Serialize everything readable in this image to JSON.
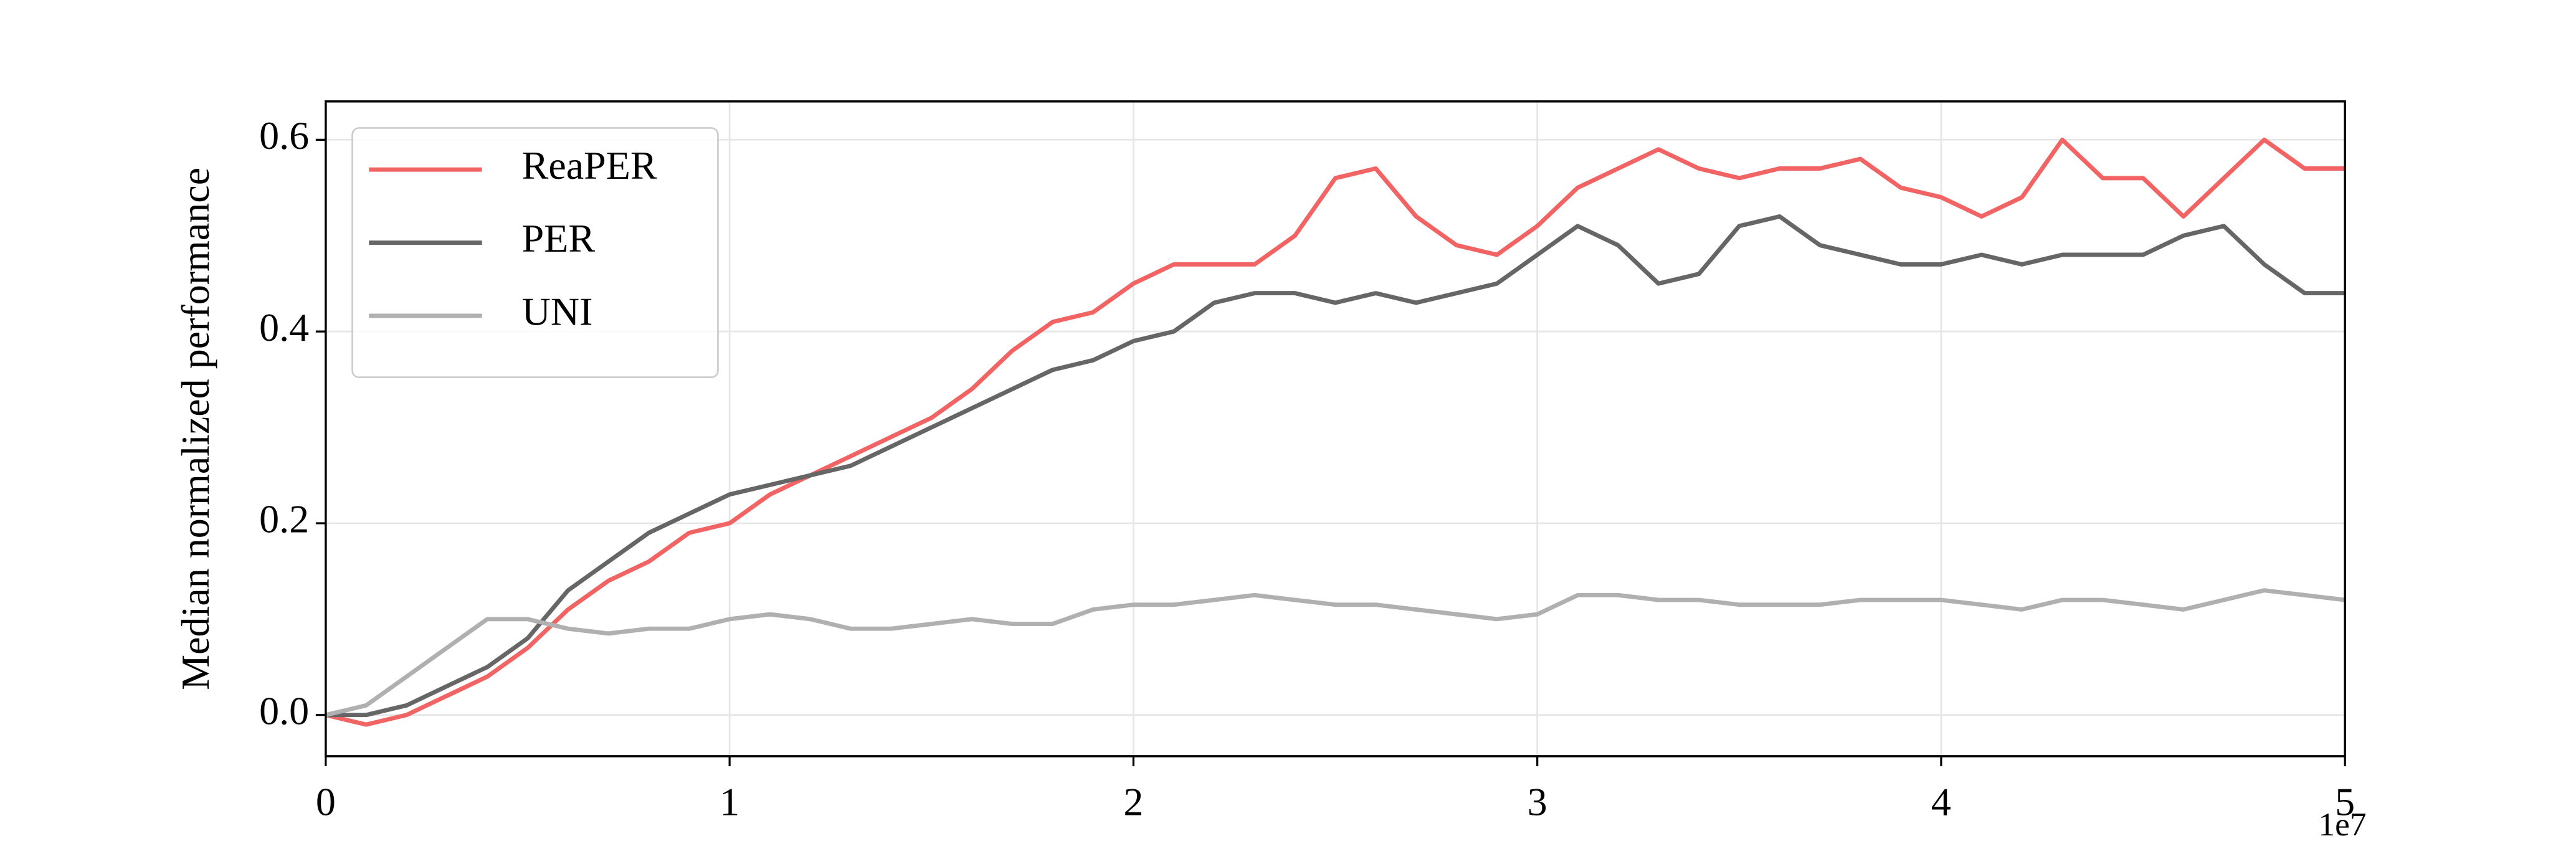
{
  "chart_data": {
    "type": "line",
    "ylabel": "Median normalized performance",
    "x_offset_label": "1e7",
    "x": [
      0,
      0.1,
      0.2,
      0.3,
      0.4,
      0.5,
      0.6,
      0.7,
      0.8,
      0.9,
      1.0,
      1.1,
      1.2,
      1.3,
      1.4,
      1.5,
      1.6,
      1.7,
      1.8,
      1.9,
      2.0,
      2.1,
      2.2,
      2.3,
      2.4,
      2.5,
      2.6,
      2.7,
      2.8,
      2.9,
      3.0,
      3.1,
      3.2,
      3.3,
      3.4,
      3.5,
      3.6,
      3.7,
      3.8,
      3.9,
      4.0,
      4.1,
      4.2,
      4.3,
      4.4,
      4.5,
      4.6,
      4.7,
      4.8,
      4.9,
      5.0
    ],
    "series": [
      {
        "name": "ReaPER",
        "color": "#f26464",
        "values": [
          0,
          -0.01,
          0,
          0.02,
          0.04,
          0.07,
          0.11,
          0.14,
          0.16,
          0.19,
          0.2,
          0.23,
          0.25,
          0.27,
          0.29,
          0.31,
          0.34,
          0.38,
          0.41,
          0.42,
          0.45,
          0.47,
          0.47,
          0.47,
          0.5,
          0.56,
          0.57,
          0.52,
          0.49,
          0.48,
          0.51,
          0.55,
          0.57,
          0.59,
          0.57,
          0.56,
          0.57,
          0.57,
          0.58,
          0.55,
          0.54,
          0.52,
          0.54,
          0.6,
          0.56,
          0.56,
          0.52,
          0.56,
          0.6,
          0.57,
          0.57
        ]
      },
      {
        "name": "PER",
        "color": "#666666",
        "values": [
          0,
          0,
          0.01,
          0.03,
          0.05,
          0.08,
          0.13,
          0.16,
          0.19,
          0.21,
          0.23,
          0.24,
          0.25,
          0.26,
          0.28,
          0.3,
          0.32,
          0.34,
          0.36,
          0.37,
          0.39,
          0.4,
          0.43,
          0.44,
          0.44,
          0.43,
          0.44,
          0.43,
          0.44,
          0.45,
          0.48,
          0.51,
          0.49,
          0.45,
          0.46,
          0.51,
          0.52,
          0.49,
          0.48,
          0.47,
          0.47,
          0.48,
          0.47,
          0.48,
          0.48,
          0.48,
          0.5,
          0.51,
          0.47,
          0.44,
          0.44
        ]
      },
      {
        "name": "UNI",
        "color": "#b0b0b0",
        "values": [
          0,
          0.01,
          0.04,
          0.07,
          0.1,
          0.1,
          0.09,
          0.085,
          0.09,
          0.09,
          0.1,
          0.105,
          0.1,
          0.09,
          0.09,
          0.095,
          0.1,
          0.095,
          0.095,
          0.11,
          0.115,
          0.115,
          0.12,
          0.125,
          0.12,
          0.115,
          0.115,
          0.11,
          0.105,
          0.1,
          0.105,
          0.125,
          0.125,
          0.12,
          0.12,
          0.115,
          0.115,
          0.115,
          0.12,
          0.12,
          0.12,
          0.115,
          0.11,
          0.12,
          0.12,
          0.115,
          0.11,
          0.12,
          0.13,
          0.125,
          0.12
        ]
      }
    ],
    "xlim": [
      0,
      5
    ],
    "xticks": [
      0,
      1,
      2,
      3,
      4,
      5
    ],
    "ylim": [
      -0.043,
      0.64
    ],
    "yticks": [
      {
        "value": 0,
        "label": "0.0"
      },
      0.2,
      0.4,
      0.6
    ],
    "grid": true,
    "legend": "upper left"
  }
}
